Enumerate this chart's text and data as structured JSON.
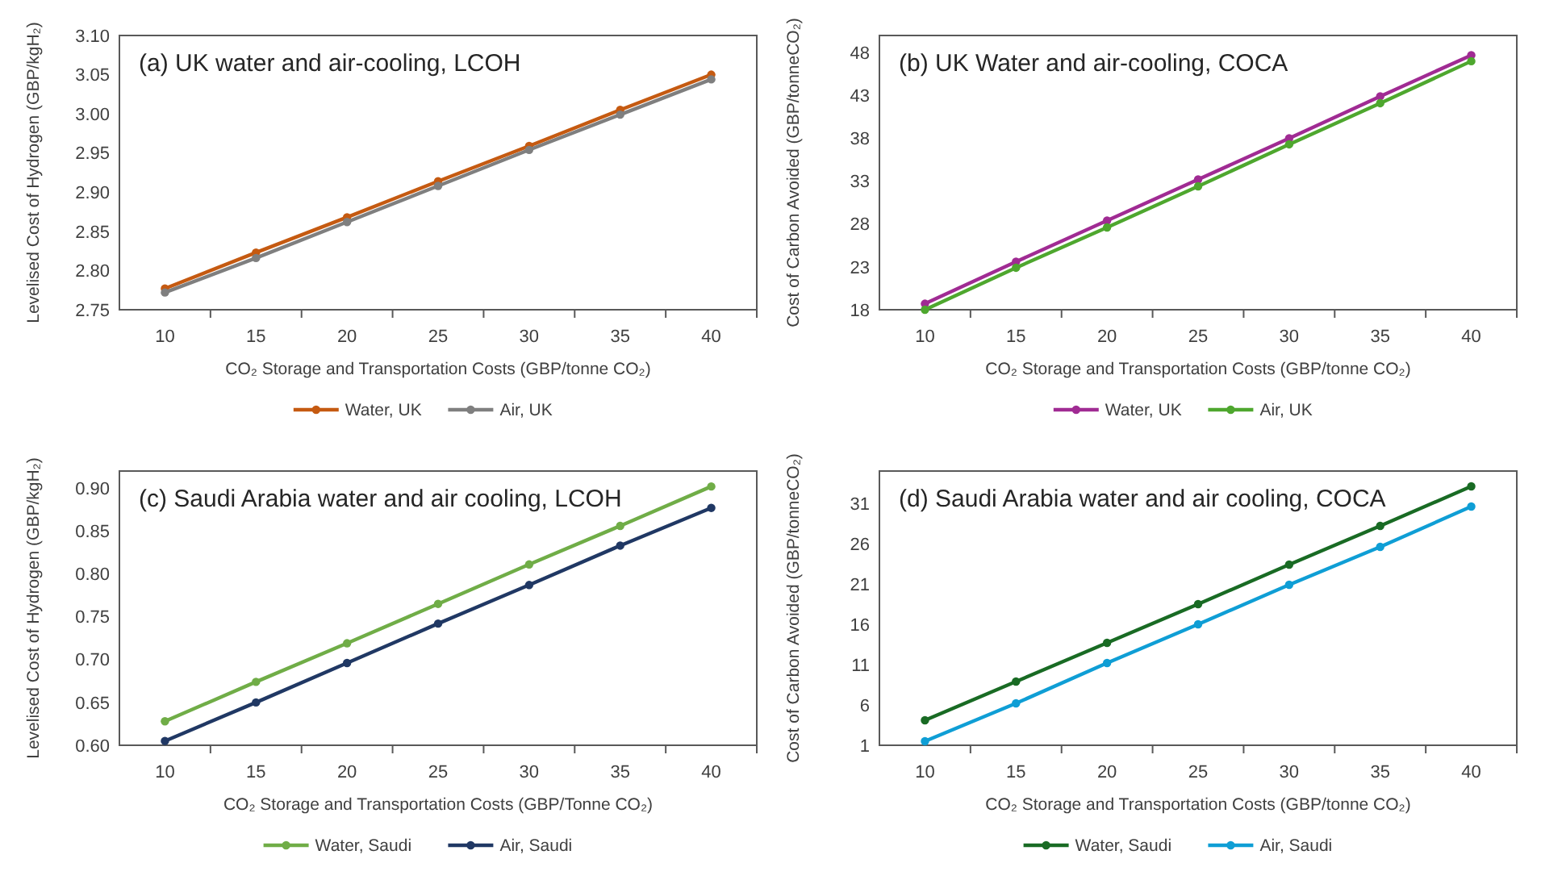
{
  "chart_data": [
    {
      "type": "line",
      "title": "(a) UK water and air-cooling, LCOH",
      "xlabel": "CO₂ Storage and Transportation Costs (GBP/tonne CO₂)",
      "ylabel": "Levelised Cost of Hydrogen (GBP/kgH₂)",
      "categories": [
        "10",
        "15",
        "20",
        "25",
        "30",
        "35",
        "40"
      ],
      "ylim": [
        2.75,
        3.1
      ],
      "yticks": [
        {
          "value": 2.75,
          "label": "2.75"
        },
        {
          "value": 2.8,
          "label": "2.80"
        },
        {
          "value": 2.85,
          "label": "2.85"
        },
        {
          "value": 2.9,
          "label": "2.90"
        },
        {
          "value": 2.95,
          "label": "2.95"
        },
        {
          "value": 3.0,
          "label": "3.00"
        },
        {
          "value": 3.05,
          "label": "3.05"
        },
        {
          "value": 3.1,
          "label": "3.10"
        }
      ],
      "marker": "circle",
      "legend": "bottom",
      "series": [
        {
          "name": "Water, UK",
          "color": "#c55a11",
          "values": [
            2.777,
            2.823,
            2.868,
            2.914,
            2.959,
            3.005,
            3.05
          ]
        },
        {
          "name": "Air, UK",
          "color": "#7f7f7f",
          "values": [
            2.772,
            2.816,
            2.862,
            2.908,
            2.954,
            2.999,
            3.044
          ]
        }
      ]
    },
    {
      "type": "line",
      "title": "(b) UK Water and air-cooling, COCA",
      "xlabel": "CO₂ Storage and Transportation Costs (GBP/tonne CO₂)",
      "ylabel": "Cost of Carbon Avoided (GBP/tonneCO₂)",
      "categories": [
        "10",
        "15",
        "20",
        "25",
        "30",
        "35",
        "40"
      ],
      "ylim": [
        18,
        50
      ],
      "yticks": [
        18,
        23,
        28,
        33,
        38,
        43,
        48
      ],
      "marker": "circle",
      "legend": "bottom",
      "series": [
        {
          "name": "Water, UK",
          "color": "#a02b93",
          "values": [
            18.7,
            23.6,
            28.4,
            33.2,
            38.0,
            42.9,
            47.7
          ]
        },
        {
          "name": "Air, UK",
          "color": "#4ea72e",
          "values": [
            18.0,
            22.9,
            27.6,
            32.4,
            37.3,
            42.1,
            47.0
          ]
        }
      ]
    },
    {
      "type": "line",
      "title": "(c) Saudi Arabia water and air cooling, LCOH",
      "xlabel": "CO₂ Storage and Transportation Costs (GBP/Tonne CO₂)",
      "ylabel": "Levelised Cost of Hydrogen (GBP/kgH₂)",
      "categories": [
        "10",
        "15",
        "20",
        "25",
        "30",
        "35",
        "40"
      ],
      "ylim": [
        0.6,
        0.92
      ],
      "yticks": [
        {
          "value": 0.6,
          "label": "0.60"
        },
        {
          "value": 0.65,
          "label": "0.65"
        },
        {
          "value": 0.7,
          "label": "0.70"
        },
        {
          "value": 0.75,
          "label": "0.75"
        },
        {
          "value": 0.8,
          "label": "0.80"
        },
        {
          "value": 0.85,
          "label": "0.85"
        },
        {
          "value": 0.9,
          "label": "0.90"
        }
      ],
      "marker": "circle",
      "legend": "bottom",
      "series": [
        {
          "name": "Water, Saudi",
          "color": "#70ad47",
          "values": [
            0.628,
            0.674,
            0.719,
            0.765,
            0.811,
            0.856,
            0.902
          ]
        },
        {
          "name": "Air, Saudi",
          "color": "#203864",
          "values": [
            0.605,
            0.65,
            0.696,
            0.742,
            0.787,
            0.833,
            0.877
          ]
        }
      ]
    },
    {
      "type": "line",
      "title": "(d) Saudi Arabia water and air cooling, COCA",
      "xlabel": "CO₂ Storage and Transportation Costs (GBP/tonne CO₂)",
      "ylabel": "Cost of Carbon Avoided (GBP/tonneCO₂)",
      "categories": [
        "10",
        "15",
        "20",
        "25",
        "30",
        "35",
        "40"
      ],
      "ylim": [
        1,
        35
      ],
      "yticks": [
        1,
        6,
        11,
        16,
        21,
        26,
        31
      ],
      "marker": "circle",
      "legend": "bottom",
      "series": [
        {
          "name": "Water, Saudi",
          "color": "#196b24",
          "values": [
            4.1,
            8.9,
            13.7,
            18.5,
            23.4,
            28.2,
            33.1
          ]
        },
        {
          "name": "Air, Saudi",
          "color": "#0f9ed5",
          "values": [
            1.5,
            6.2,
            11.2,
            16.0,
            20.9,
            25.6,
            30.6
          ]
        }
      ]
    }
  ]
}
